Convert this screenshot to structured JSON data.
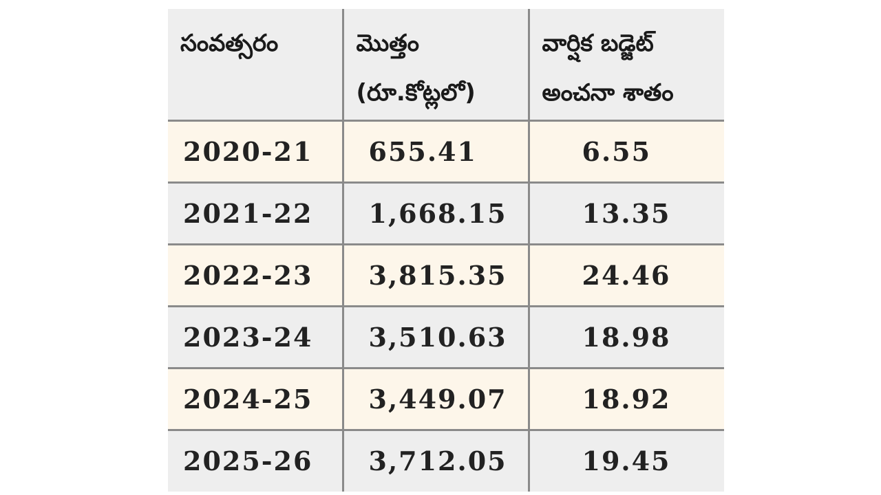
{
  "table": {
    "headers": {
      "year": "సంవత్సరం",
      "total_line1": "మొత్తం",
      "total_line2": "(రూ.కోట్లలో)",
      "percent_line1": "వార్షిక బడ్జెట్",
      "percent_line2": "అంచనా శాతం"
    },
    "rows": [
      {
        "year": "2020-21",
        "total": "655.41",
        "percent": "6.55"
      },
      {
        "year": "2021-22",
        "total": "1,668.15",
        "percent": "13.35"
      },
      {
        "year": "2022-23",
        "total": "3,815.35",
        "percent": "24.46"
      },
      {
        "year": "2023-24",
        "total": "3,510.63",
        "percent": "18.98"
      },
      {
        "year": "2024-25",
        "total": "3,449.07",
        "percent": "18.92"
      },
      {
        "year": "2025-26",
        "total": "3,712.05",
        "percent": "19.45"
      }
    ],
    "colors": {
      "header_bg": "#eeeeee",
      "odd_row_bg": "#fdf6ea",
      "even_row_bg": "#eeeeee",
      "border": "#8a8a8a"
    }
  }
}
